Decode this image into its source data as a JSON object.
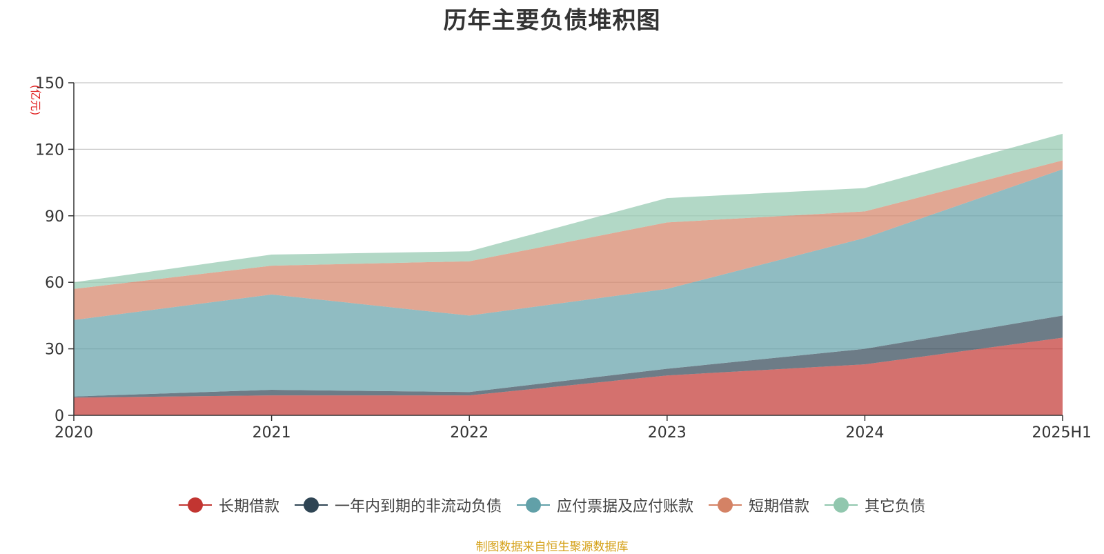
{
  "chart_data": {
    "type": "area",
    "stacked": true,
    "title": "历年主要负债堆积图",
    "unit_label": "(亿元)",
    "x": [
      "2020",
      "2021",
      "2022",
      "2023",
      "2024",
      "2025H1"
    ],
    "y_ticks": [
      "0",
      "30",
      "60",
      "90",
      "120",
      "150"
    ],
    "ylim": [
      0,
      150
    ],
    "grid": true,
    "legend_position": "bottom",
    "series": [
      {
        "name": "长期借款",
        "color": "#c23531",
        "values": [
          8,
          9,
          9,
          18,
          23,
          35
        ]
      },
      {
        "name": "一年内到期的非流动负债",
        "color": "#2f4554",
        "values": [
          0.5,
          2.5,
          1.5,
          3,
          7,
          10
        ]
      },
      {
        "name": "应付票据及应付账款",
        "color": "#61a0a8",
        "values": [
          34.5,
          43,
          34.5,
          36,
          50,
          66
        ]
      },
      {
        "name": "短期借款",
        "color": "#d48265",
        "values": [
          14,
          13,
          24.5,
          30,
          12,
          4
        ]
      },
      {
        "name": "其它负债",
        "color": "#91c7ae",
        "values": [
          3,
          5,
          4.5,
          11,
          10.5,
          12
        ]
      }
    ]
  },
  "source_note": "制图数据来自恒生聚源数据库"
}
